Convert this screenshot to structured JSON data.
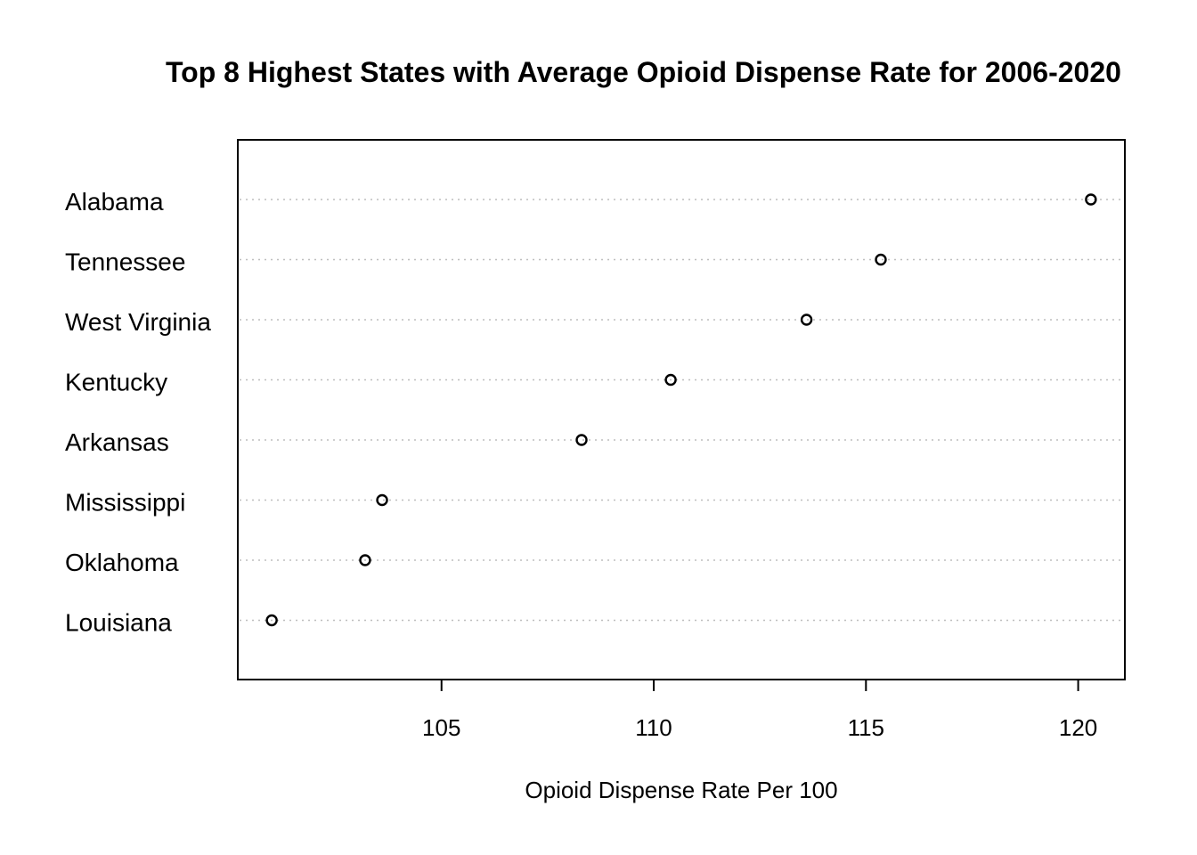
{
  "chart_data": {
    "type": "dot",
    "title": "Top 8 Highest States with Average Opioid Dispense Rate for 2006-2020",
    "xlabel": "Opioid Dispense Rate Per 100",
    "ylabel": "",
    "categories": [
      "Alabama",
      "Tennessee",
      "West Virginia",
      "Kentucky",
      "Arkansas",
      "Mississippi",
      "Oklahoma",
      "Louisiana"
    ],
    "values": [
      120.3,
      115.35,
      113.6,
      110.4,
      108.3,
      103.6,
      103.2,
      101.0
    ],
    "xlim": [
      100.2,
      121.1
    ],
    "xticks": [
      105,
      110,
      115,
      120
    ],
    "xtick_labels": [
      "105",
      "110",
      "115",
      "120"
    ],
    "grid": "dotted horizontal guide lines",
    "legend": "none"
  }
}
